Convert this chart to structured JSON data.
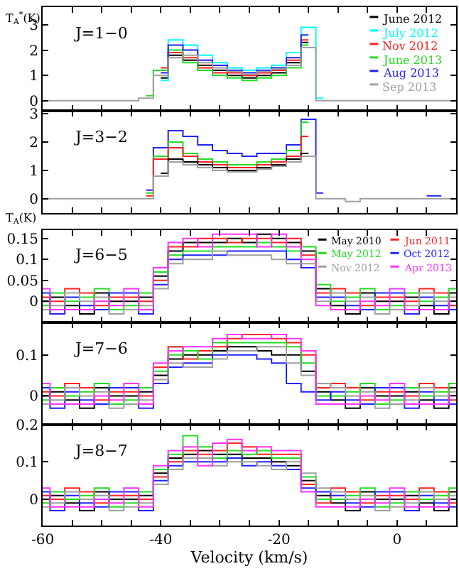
{
  "chart_data": [
    {
      "type": "step",
      "title": "J=1−0",
      "ylabel": "T$_{A}$$^{*}$(K)",
      "legend": "top right",
      "grid": false,
      "tick_labels": "y",
      "x": [
        -60,
        -57.5,
        -55,
        -52.5,
        -50,
        -47.5,
        -45,
        -42.5,
        -40,
        -37.5,
        -35,
        -32.5,
        -30,
        -27.5,
        -25,
        -22.5,
        -20,
        -17.5,
        -15,
        -12.5,
        -10,
        -7.5,
        -5,
        -2.5,
        0,
        2.5,
        5,
        7.5,
        10
      ],
      "xlim": [
        -60,
        10
      ],
      "xticks": [
        -60,
        {
          "value": -55,
          "label": null
        },
        {
          "value": -50,
          "label": null
        },
        {
          "value": -45,
          "label": null
        },
        -40,
        {
          "value": -35,
          "label": null
        },
        {
          "value": -30,
          "label": null
        },
        {
          "value": -25,
          "label": null
        },
        -20,
        {
          "value": -15,
          "label": null
        },
        {
          "value": -10,
          "label": null
        },
        {
          "value": -5,
          "label": null
        },
        0,
        {
          "value": 5,
          "label": null
        },
        {
          "value": 10,
          "label": null
        }
      ],
      "ylim": [
        -0.4,
        3.7
      ],
      "yticks": [
        0,
        1,
        2,
        3
      ],
      "series": [
        {
          "name": "June 2012",
          "color": "#000000",
          "values": [
            null,
            null,
            null,
            null,
            null,
            null,
            null,
            null,
            0.9,
            1.8,
            1.6,
            1.4,
            1.2,
            1.0,
            0.9,
            1.0,
            1.1,
            1.5,
            2.3,
            null,
            null,
            null,
            null,
            null,
            null,
            null,
            null,
            null,
            null
          ]
        },
        {
          "name": "July 2012",
          "color": "#00ffff",
          "values": [
            null,
            null,
            null,
            null,
            null,
            null,
            null,
            null,
            0.8,
            2.4,
            2.2,
            1.8,
            1.5,
            1.3,
            1.2,
            1.3,
            1.4,
            1.9,
            2.9,
            0.1,
            null,
            null,
            null,
            null,
            null,
            null,
            null,
            null,
            null
          ]
        },
        {
          "name": "Nov 2012",
          "color": "#ff2222",
          "values": [
            null,
            null,
            null,
            null,
            null,
            null,
            null,
            null,
            1.3,
            1.9,
            1.7,
            1.3,
            1.1,
            1.1,
            1.0,
            1.1,
            1.2,
            1.6,
            2.4,
            null,
            null,
            null,
            null,
            null,
            null,
            null,
            null,
            null,
            null
          ]
        },
        {
          "name": "June 2013",
          "color": "#22dd22",
          "values": [
            null,
            null,
            null,
            null,
            null,
            null,
            null,
            0.2,
            1.2,
            2.0,
            1.5,
            1.2,
            1.0,
            0.9,
            0.8,
            0.9,
            1.0,
            1.3,
            2.2,
            null,
            null,
            null,
            null,
            null,
            null,
            null,
            null,
            null,
            null
          ]
        },
        {
          "name": "Aug 2013",
          "color": "#2222ff",
          "values": [
            null,
            null,
            null,
            null,
            null,
            null,
            null,
            null,
            1.1,
            2.2,
            2.0,
            1.6,
            1.4,
            1.2,
            1.1,
            1.2,
            1.3,
            1.7,
            2.6,
            null,
            null,
            null,
            null,
            null,
            null,
            null,
            null,
            null,
            null
          ]
        },
        {
          "name": "Sep 2013",
          "color": "#a0a0a0",
          "values": [
            0,
            0,
            0,
            0,
            0,
            0,
            0,
            0.1,
            1.0,
            1.7,
            1.8,
            1.5,
            1.3,
            1.15,
            1.05,
            1.15,
            1.25,
            1.4,
            2.1,
            0,
            0,
            0,
            0,
            0,
            0,
            0,
            0,
            0,
            0
          ]
        }
      ]
    },
    {
      "type": "step",
      "title": "J=3−2",
      "grid": false,
      "tick_labels": "y",
      "x": [
        -60,
        -57.5,
        -55,
        -52.5,
        -50,
        -47.5,
        -45,
        -42.5,
        -40,
        -37.5,
        -35,
        -32.5,
        -30,
        -27.5,
        -25,
        -22.5,
        -20,
        -17.5,
        -15,
        -12.5,
        -10,
        -7.5,
        -5,
        -2.5,
        0,
        2.5,
        5,
        7.5,
        10
      ],
      "xlim": [
        -60,
        10
      ],
      "xticks": [
        -60,
        {
          "value": -55,
          "label": null
        },
        {
          "value": -50,
          "label": null
        },
        {
          "value": -45,
          "label": null
        },
        -40,
        {
          "value": -35,
          "label": null
        },
        {
          "value": -30,
          "label": null
        },
        {
          "value": -25,
          "label": null
        },
        -20,
        {
          "value": -15,
          "label": null
        },
        {
          "value": -10,
          "label": null
        },
        {
          "value": -5,
          "label": null
        },
        0,
        {
          "value": 5,
          "label": null
        },
        {
          "value": 10,
          "label": null
        }
      ],
      "ylim": [
        -0.5,
        3.1
      ],
      "yticks": [
        0,
        1,
        2,
        3
      ],
      "series": [
        {
          "color": "#2222ff",
          "values": [
            null,
            null,
            null,
            null,
            null,
            null,
            null,
            0.3,
            1.8,
            2.4,
            2.2,
            1.9,
            1.7,
            1.6,
            1.5,
            1.6,
            1.6,
            1.9,
            2.8,
            0.2,
            null,
            null,
            null,
            null,
            null,
            null,
            0.1,
            0.1,
            null
          ]
        },
        {
          "color": "#22dd22",
          "values": [
            null,
            null,
            null,
            null,
            null,
            null,
            null,
            0.2,
            1.5,
            2.0,
            1.6,
            1.4,
            1.3,
            1.2,
            1.2,
            1.3,
            1.4,
            1.7,
            2.7,
            null,
            null,
            null,
            null,
            null,
            null,
            null,
            null,
            null,
            null
          ]
        },
        {
          "color": "#ff2222",
          "values": [
            null,
            null,
            null,
            null,
            null,
            null,
            null,
            0.1,
            1.4,
            1.8,
            1.5,
            1.3,
            1.2,
            1.1,
            1.1,
            1.2,
            1.3,
            1.5,
            2.2,
            null,
            null,
            null,
            null,
            null,
            null,
            null,
            null,
            null,
            null
          ]
        },
        {
          "color": "#000000",
          "values": [
            null,
            null,
            null,
            null,
            null,
            null,
            null,
            null,
            0.9,
            1.4,
            1.3,
            1.2,
            1.1,
            1.0,
            1.0,
            1.1,
            1.2,
            1.4,
            1.6,
            null,
            null,
            null,
            null,
            null,
            null,
            null,
            null,
            null,
            null
          ]
        },
        {
          "color": "#a0a0a0",
          "values": [
            0,
            0,
            0,
            0,
            0,
            0,
            0,
            0,
            0.8,
            1.3,
            1.2,
            1.1,
            1.0,
            0.95,
            0.95,
            1.05,
            1.15,
            1.3,
            1.5,
            0,
            0,
            -0.1,
            0,
            0,
            0,
            0,
            0,
            0,
            0
          ]
        }
      ]
    },
    {
      "type": "step",
      "title": "J=6−5",
      "ylabel": "T$_{A}$(K)",
      "legend": "top right",
      "grid": false,
      "tick_labels": "y",
      "x": [
        -60,
        -57.5,
        -55,
        -52.5,
        -50,
        -47.5,
        -45,
        -42.5,
        -40,
        -37.5,
        -35,
        -32.5,
        -30,
        -27.5,
        -25,
        -22.5,
        -20,
        -17.5,
        -15,
        -12.5,
        -10,
        -7.5,
        -5,
        -2.5,
        0,
        2.5,
        5,
        7.5,
        10
      ],
      "xlim": [
        -60,
        10
      ],
      "xticks": [
        -60,
        {
          "value": -55,
          "label": null
        },
        {
          "value": -50,
          "label": null
        },
        {
          "value": -45,
          "label": null
        },
        -40,
        {
          "value": -35,
          "label": null
        },
        {
          "value": -30,
          "label": null
        },
        {
          "value": -25,
          "label": null
        },
        -20,
        {
          "value": -15,
          "label": null
        },
        {
          "value": -10,
          "label": null
        },
        {
          "value": -5,
          "label": null
        },
        0,
        {
          "value": 5,
          "label": null
        },
        {
          "value": 10,
          "label": null
        }
      ],
      "ylim": [
        -0.05,
        0.17
      ],
      "yticks": [
        0,
        0.05,
        0.1,
        0.15
      ],
      "series": [
        {
          "name": "May 2010",
          "color": "#000000",
          "values": [
            0,
            0.01,
            -0.01,
            -0.03,
            0.02,
            0,
            0,
            0.01,
            0.06,
            0.12,
            0.14,
            0.14,
            0.14,
            0.15,
            0.14,
            0.16,
            0.15,
            0.14,
            0.12,
            0.03,
            -0.01,
            -0.03,
            0.02,
            0,
            0,
            0.01,
            -0.01,
            -0.03,
            0.02
          ]
        },
        {
          "name": "Jun 2011",
          "color": "#ff2222",
          "values": [
            0.01,
            0,
            0.03,
            0.02,
            -0.01,
            0.01,
            0.01,
            0,
            0.05,
            0.13,
            0.13,
            0.15,
            0.15,
            0.14,
            0.15,
            0.15,
            0.14,
            0.15,
            0.11,
            0.02,
            0.03,
            0.02,
            -0.01,
            0.01,
            0.01,
            0,
            0.03,
            0.02,
            -0.01
          ]
        },
        {
          "name": "May 2012",
          "color": "#22dd22",
          "values": [
            -0.01,
            0.02,
            0,
            0.01,
            0.03,
            -0.02,
            -0.01,
            0.02,
            0.07,
            0.11,
            0.12,
            0.12,
            0.13,
            0.13,
            0.13,
            0.14,
            0.13,
            0.12,
            0.13,
            0.04,
            0,
            0.01,
            0.03,
            -0.02,
            -0.01,
            0.02,
            0,
            0.01,
            0.03
          ]
        },
        {
          "name": "Oct 2012",
          "color": "#2222ff",
          "values": [
            0.02,
            -0.03,
            0.01,
            -0.01,
            -0.02,
            0.02,
            0.02,
            -0.03,
            0.04,
            0.1,
            0.11,
            0.11,
            0.11,
            0.12,
            0.12,
            0.12,
            0.12,
            0.1,
            0.08,
            0.01,
            0.01,
            -0.01,
            -0.02,
            0.02,
            0.02,
            -0.03,
            0.01,
            -0.01,
            -0.02
          ]
        },
        {
          "name": "Nov 2012",
          "color": "#a0a0a0",
          "values": [
            -0.02,
            -0.01,
            0.02,
            0,
            0.01,
            -0.03,
            -0.02,
            -0.01,
            0.03,
            0.09,
            0.1,
            0.1,
            0.12,
            0.11,
            0.11,
            0.11,
            0.1,
            0.09,
            0.09,
            0,
            0.02,
            0,
            0.01,
            -0.03,
            -0.02,
            -0.01,
            0.02,
            0,
            0.01
          ]
        },
        {
          "name": "Apr 2013",
          "color": "#ff33ff",
          "values": [
            0.03,
            -0.02,
            -0.02,
            -0.02,
            0,
            -0.01,
            0.03,
            -0.02,
            0.08,
            0.14,
            0.15,
            0.13,
            0.16,
            0.16,
            0.16,
            0.13,
            0.16,
            0.13,
            0.1,
            -0.01,
            -0.02,
            -0.02,
            0,
            -0.01,
            0.03,
            -0.02,
            -0.02,
            -0.02,
            0
          ]
        }
      ]
    },
    {
      "type": "step",
      "title": "J=7−6",
      "grid": false,
      "tick_labels": "y",
      "x": [
        -60,
        -57.5,
        -55,
        -52.5,
        -50,
        -47.5,
        -45,
        -42.5,
        -40,
        -37.5,
        -35,
        -32.5,
        -30,
        -27.5,
        -25,
        -22.5,
        -20,
        -17.5,
        -15,
        -12.5,
        -10,
        -7.5,
        -5,
        -2.5,
        0,
        2.5,
        5,
        7.5,
        10
      ],
      "xlim": [
        -60,
        10
      ],
      "xticks": [
        -60,
        {
          "value": -55,
          "label": null
        },
        {
          "value": -50,
          "label": null
        },
        {
          "value": -45,
          "label": null
        },
        -40,
        {
          "value": -35,
          "label": null
        },
        {
          "value": -30,
          "label": null
        },
        {
          "value": -25,
          "label": null
        },
        -20,
        {
          "value": -15,
          "label": null
        },
        {
          "value": -10,
          "label": null
        },
        {
          "value": -5,
          "label": null
        },
        0,
        {
          "value": 5,
          "label": null
        },
        {
          "value": 10,
          "label": null
        }
      ],
      "ylim": [
        -0.07,
        0.18
      ],
      "yticks": [
        0,
        0.1
      ],
      "series": [
        {
          "color": "#000000",
          "values": [
            0,
            0.01,
            -0.01,
            -0.03,
            0.02,
            0,
            0,
            0.01,
            0.05,
            0.09,
            0.1,
            0.1,
            0.11,
            0.12,
            0.12,
            0.11,
            0.1,
            0.1,
            0.06,
            0.01,
            -0.01,
            -0.03,
            0.02,
            0,
            0,
            0.01,
            -0.01,
            -0.03,
            0.02
          ]
        },
        {
          "color": "#ff2222",
          "values": [
            0.01,
            0,
            0.03,
            0.02,
            -0.01,
            0.01,
            0.01,
            0,
            0.07,
            0.12,
            0.09,
            0.11,
            0.12,
            0.14,
            0.15,
            0.15,
            0.14,
            0.13,
            0.1,
            0.02,
            0.03,
            0.02,
            -0.01,
            0.01,
            0.01,
            0,
            0.03,
            0.02,
            -0.01
          ]
        },
        {
          "color": "#22dd22",
          "values": [
            -0.01,
            0.02,
            0,
            0.01,
            0.03,
            -0.02,
            -0.01,
            0.02,
            0.06,
            0.1,
            0.11,
            0.09,
            0.13,
            0.13,
            0.13,
            0.13,
            0.13,
            0.12,
            0.08,
            0,
            0,
            0.01,
            0.03,
            -0.02,
            -0.01,
            0.02,
            0,
            0.01,
            0.03
          ]
        },
        {
          "color": "#2222ff",
          "values": [
            0.02,
            -0.03,
            0.01,
            -0.01,
            -0.02,
            0.02,
            0.02,
            -0.03,
            0.03,
            0.07,
            0.08,
            0.08,
            0.1,
            0.1,
            0.1,
            0.09,
            0.08,
            0.03,
            0.01,
            -0.01,
            0.01,
            -0.01,
            -0.02,
            0.02,
            0.02,
            -0.03,
            0.01,
            -0.01,
            -0.02
          ]
        },
        {
          "color": "#a0a0a0",
          "values": [
            -0.02,
            -0.01,
            0.02,
            0,
            0.01,
            -0.03,
            -0.02,
            -0.01,
            0.04,
            0.08,
            0.07,
            0.07,
            0.09,
            0.11,
            0.11,
            0.12,
            0.12,
            0.08,
            0.05,
            0.03,
            0.02,
            0,
            0.01,
            -0.03,
            -0.02,
            -0.01,
            0.02,
            0,
            0.01
          ]
        },
        {
          "color": "#ff33ff",
          "values": [
            0.03,
            -0.02,
            -0.02,
            -0.02,
            0,
            -0.01,
            0.03,
            -0.02,
            0.08,
            0.11,
            0.12,
            0.12,
            0.14,
            0.15,
            0.14,
            0.14,
            0.15,
            0.14,
            0.11,
            -0.02,
            -0.02,
            -0.02,
            0,
            -0.01,
            0.03,
            -0.02,
            -0.02,
            -0.02,
            0
          ]
        }
      ]
    },
    {
      "type": "step",
      "title": "J=8−7",
      "xlabel": "Velocity (km/s)",
      "grid": false,
      "x": [
        -60,
        -57.5,
        -55,
        -52.5,
        -50,
        -47.5,
        -45,
        -42.5,
        -40,
        -37.5,
        -35,
        -32.5,
        -30,
        -27.5,
        -25,
        -22.5,
        -20,
        -17.5,
        -15,
        -12.5,
        -10,
        -7.5,
        -5,
        -2.5,
        0,
        2.5,
        5,
        7.5,
        10
      ],
      "xlim": [
        -60,
        10
      ],
      "xticks": [
        -60,
        {
          "value": -55,
          "label": null
        },
        {
          "value": -50,
          "label": null
        },
        {
          "value": -45,
          "label": null
        },
        -40,
        {
          "value": -35,
          "label": null
        },
        {
          "value": -30,
          "label": null
        },
        {
          "value": -25,
          "label": null
        },
        -20,
        {
          "value": -15,
          "label": null
        },
        {
          "value": -10,
          "label": null
        },
        {
          "value": -5,
          "label": null
        },
        0,
        {
          "value": 5,
          "label": null
        },
        {
          "value": 10,
          "label": null
        }
      ],
      "ylim": [
        -0.07,
        0.2
      ],
      "yticks": [
        0,
        0.1,
        0.2
      ],
      "series": [
        {
          "color": "#000000",
          "values": [
            0,
            0.01,
            -0.01,
            -0.03,
            0.02,
            0,
            0,
            0.01,
            0.07,
            0.11,
            0.12,
            0.13,
            0.12,
            0.12,
            0.11,
            0.11,
            0.1,
            0.09,
            0.05,
            0.01,
            -0.01,
            -0.03,
            0.02,
            0,
            0,
            0.01,
            -0.01,
            -0.03,
            0.02
          ]
        },
        {
          "color": "#ff2222",
          "values": [
            0.01,
            0,
            0.03,
            0.02,
            -0.01,
            0.01,
            0.01,
            0,
            0.06,
            0.1,
            0.13,
            0.12,
            0.13,
            0.15,
            0.14,
            0.12,
            0.12,
            0.12,
            0.04,
            -0.01,
            0.03,
            0.02,
            -0.01,
            0.01,
            0.01,
            0,
            0.03,
            0.02,
            -0.01
          ]
        },
        {
          "color": "#22dd22",
          "values": [
            -0.01,
            0.02,
            0,
            0.01,
            0.03,
            -0.02,
            -0.01,
            0.02,
            0.08,
            0.12,
            0.17,
            0.14,
            0.11,
            0.13,
            0.12,
            0.13,
            0.11,
            0.11,
            0.06,
            0,
            0,
            0.01,
            0.03,
            -0.02,
            -0.01,
            0.02,
            0,
            0.01,
            0.03
          ]
        },
        {
          "color": "#2222ff",
          "values": [
            0.02,
            -0.03,
            0.01,
            -0.01,
            -0.02,
            0.02,
            0.02,
            -0.03,
            0.05,
            0.09,
            0.1,
            0.1,
            0.1,
            0.11,
            0.09,
            0.1,
            0.09,
            0.08,
            0.03,
            0.02,
            0.01,
            -0.01,
            -0.02,
            0.02,
            0.02,
            -0.03,
            0.01,
            -0.01,
            -0.02
          ]
        },
        {
          "color": "#a0a0a0",
          "values": [
            -0.02,
            -0.01,
            0.02,
            0,
            0.01,
            -0.03,
            -0.02,
            -0.01,
            0.04,
            0.08,
            0.11,
            0.11,
            0.09,
            0.1,
            0.1,
            0.09,
            0.08,
            0.1,
            0.07,
            0.03,
            0.02,
            0,
            0.01,
            -0.03,
            -0.02,
            -0.01,
            0.02,
            0,
            0.01
          ]
        },
        {
          "color": "#ff33ff",
          "values": [
            0.03,
            -0.02,
            -0.02,
            -0.02,
            0,
            -0.01,
            0.03,
            -0.02,
            0.09,
            0.13,
            0.14,
            0.09,
            0.15,
            0.16,
            0.13,
            0.14,
            0.13,
            0.13,
            0.02,
            -0.02,
            -0.02,
            -0.02,
            0,
            -0.01,
            0.03,
            -0.02,
            -0.02,
            -0.02,
            0
          ]
        }
      ]
    }
  ]
}
